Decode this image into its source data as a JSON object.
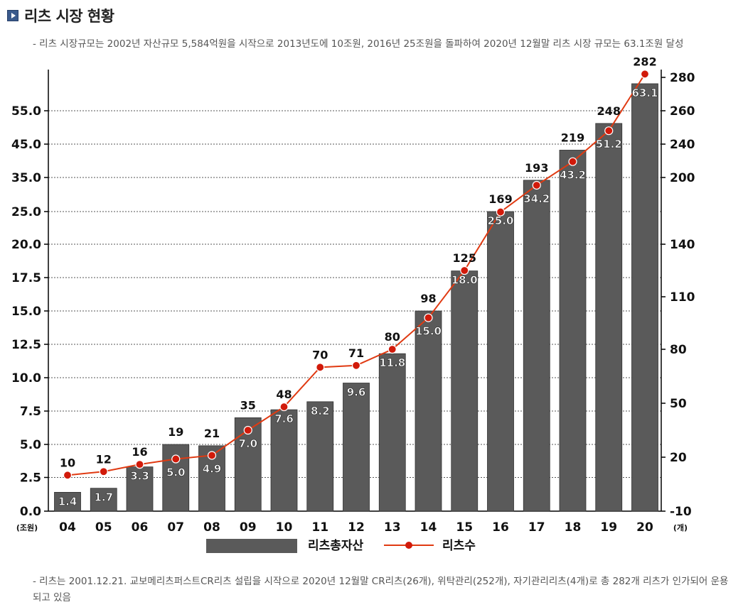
{
  "header": {
    "title": "리츠 시장 현황",
    "description": "- 리츠 시장규모는 2002년 자산규모 5,584억원을 시작으로 2013년도에 10조원, 2016년 25조원을 돌파하여 2020년 12월말 리츠 시장 규모는 63.1조원 달성"
  },
  "footer": {
    "note": "- 리츠는 2001.12.21. 교보메리츠퍼스트CR리츠 설립을 시작으로 2020년 12월말 CR리츠(26개), 위탁관리(252개), 자기관리리츠(4개)로 총 282개 리츠가 인가되어 운용되고 있음"
  },
  "chart_data": {
    "type": "bar",
    "categories": [
      "04",
      "05",
      "06",
      "07",
      "08",
      "09",
      "10",
      "11",
      "12",
      "13",
      "14",
      "15",
      "16",
      "17",
      "18",
      "19",
      "20"
    ],
    "series": [
      {
        "name": "리츠총자산",
        "type": "bar",
        "axis": "left",
        "values": [
          1.4,
          1.7,
          3.3,
          5.0,
          4.9,
          7.0,
          7.6,
          8.2,
          9.6,
          11.8,
          15.0,
          18.0,
          25.0,
          34.2,
          43.2,
          51.2,
          63.1
        ],
        "color": "#5a5a5a"
      },
      {
        "name": "리츠수",
        "type": "line",
        "axis": "right",
        "values": [
          10,
          12,
          16,
          19,
          21,
          35,
          48,
          70,
          71,
          80,
          98,
          125,
          169,
          193,
          219,
          248,
          282
        ],
        "color": "#e03a12",
        "marker_color": "#d11a0a"
      }
    ],
    "left_axis": {
      "unit": "(조원)",
      "ticks": [
        "0.0",
        "2.5",
        "5.0",
        "7.5",
        "10.0",
        "12.5",
        "15.0",
        "17.5",
        "20.0",
        "25.0",
        "35.0",
        "45.0",
        "55.0"
      ]
    },
    "right_axis": {
      "unit": "(개)",
      "ticks": [
        "-10",
        "20",
        "50",
        "80",
        "110",
        "140",
        "200",
        "240",
        "260",
        "280"
      ]
    },
    "grid": true,
    "legend_position": "bottom-center"
  }
}
